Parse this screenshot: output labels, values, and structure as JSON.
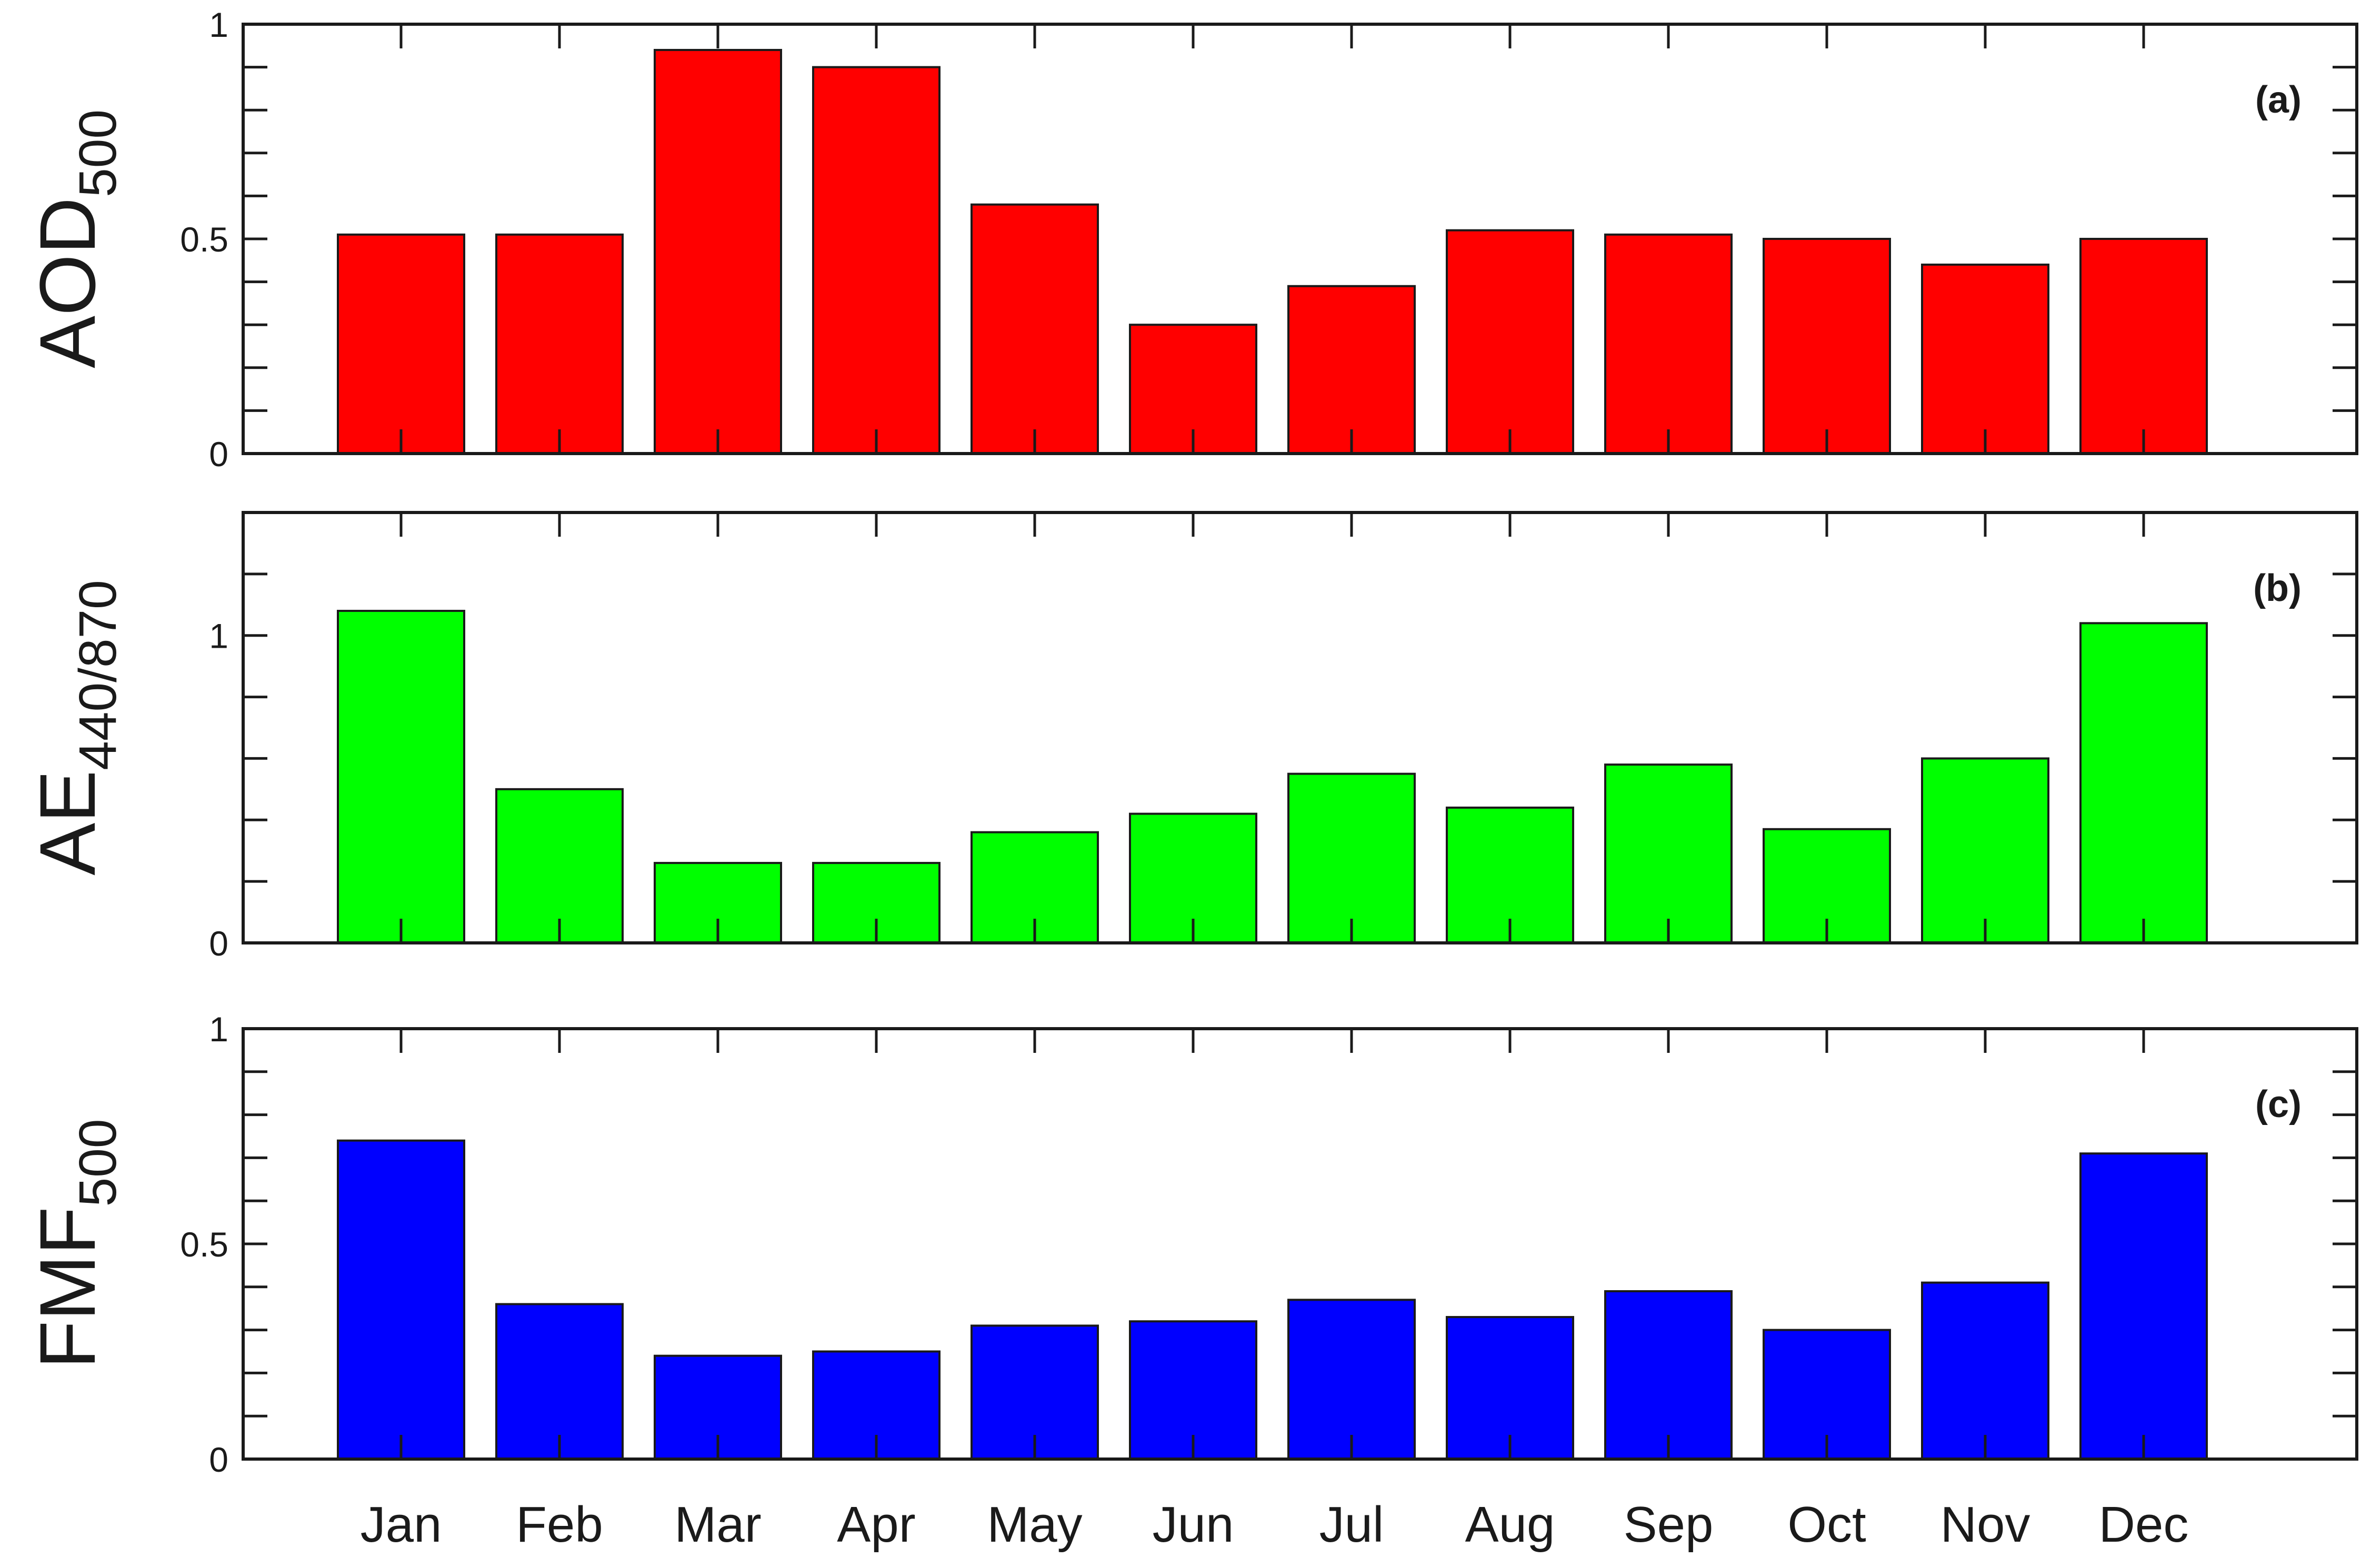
{
  "chart_data": [
    {
      "type": "bar",
      "panel_label": "(a)",
      "ylabel_main": "AOD",
      "ylabel_sub": "500",
      "categories": [
        "Jan",
        "Feb",
        "Mar",
        "Apr",
        "May",
        "Jun",
        "Jul",
        "Aug",
        "Sep",
        "Oct",
        "Nov",
        "Dec"
      ],
      "values": [
        0.51,
        0.51,
        0.94,
        0.9,
        0.58,
        0.3,
        0.39,
        0.52,
        0.51,
        0.5,
        0.44,
        0.5
      ],
      "ylim": [
        0,
        1
      ],
      "yticks": [
        0,
        0.5,
        1
      ],
      "ytick_labels": [
        "0",
        "0.5",
        "1"
      ],
      "minor_step": 0.1,
      "color": "#ff0000",
      "show_xtick_labels": false
    },
    {
      "type": "bar",
      "panel_label": "(b)",
      "ylabel_main": "AE",
      "ylabel_sub": "440/870",
      "categories": [
        "Jan",
        "Feb",
        "Mar",
        "Apr",
        "May",
        "Jun",
        "Jul",
        "Aug",
        "Sep",
        "Oct",
        "Nov",
        "Dec"
      ],
      "values": [
        1.08,
        0.5,
        0.26,
        0.26,
        0.36,
        0.42,
        0.55,
        0.44,
        0.58,
        0.37,
        0.6,
        1.04
      ],
      "ylim": [
        0,
        1.4
      ],
      "yticks": [
        0,
        1
      ],
      "ytick_labels": [
        "0",
        "1"
      ],
      "minor_step": 0.2,
      "color": "#00ff00",
      "show_xtick_labels": false
    },
    {
      "type": "bar",
      "panel_label": "(c)",
      "ylabel_main": "FMF",
      "ylabel_sub": "500",
      "categories": [
        "Jan",
        "Feb",
        "Mar",
        "Apr",
        "May",
        "Jun",
        "Jul",
        "Aug",
        "Sep",
        "Oct",
        "Nov",
        "Dec"
      ],
      "values": [
        0.74,
        0.36,
        0.24,
        0.25,
        0.31,
        0.32,
        0.37,
        0.33,
        0.39,
        0.3,
        0.41,
        0.71
      ],
      "ylim": [
        0,
        1
      ],
      "yticks": [
        0,
        0.5,
        1
      ],
      "ytick_labels": [
        "0",
        "0.5",
        "1"
      ],
      "minor_step": 0.1,
      "color": "#0000ff",
      "show_xtick_labels": true
    }
  ]
}
